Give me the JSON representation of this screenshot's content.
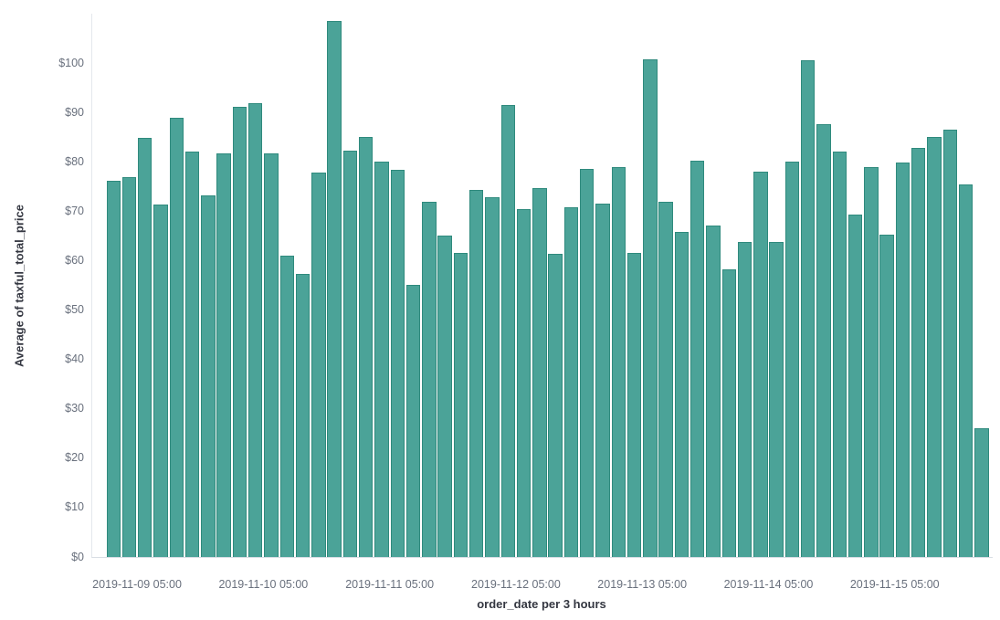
{
  "chart_data": {
    "type": "bar",
    "title": "",
    "xlabel": "order_date per 3 hours",
    "ylabel": "Average of taxful_total_price",
    "legend": "none",
    "grid": false,
    "background_color": "#ffffff",
    "bar_color": "#4ba398",
    "bar_border_color": "#2f8a7d",
    "axis_tick_text_color": "#69707d",
    "axis_title_text_color": "#343741",
    "ylim": [
      0,
      110
    ],
    "y_tick_values": [
      0,
      10,
      20,
      30,
      40,
      50,
      60,
      70,
      80,
      90,
      100
    ],
    "y_tick_labels": [
      "$0",
      "$10",
      "$20",
      "$30",
      "$40",
      "$50",
      "$60",
      "$70",
      "$80",
      "$90",
      "$100"
    ],
    "x_ticks": [
      {
        "label": "2019-11-09 05:00",
        "bar_index": 2
      },
      {
        "label": "2019-11-10 05:00",
        "bar_index": 10
      },
      {
        "label": "2019-11-11 05:00",
        "bar_index": 18
      },
      {
        "label": "2019-11-12 05:00",
        "bar_index": 26
      },
      {
        "label": "2019-11-13 05:00",
        "bar_index": 34
      },
      {
        "label": "2019-11-14 05:00",
        "bar_index": 42
      },
      {
        "label": "2019-11-15 05:00",
        "bar_index": 50
      }
    ],
    "x": [
      "2019-11-08 23:00",
      "2019-11-09 02:00",
      "2019-11-09 05:00",
      "2019-11-09 08:00",
      "2019-11-09 11:00",
      "2019-11-09 14:00",
      "2019-11-09 17:00",
      "2019-11-09 20:00",
      "2019-11-09 23:00",
      "2019-11-10 02:00",
      "2019-11-10 05:00",
      "2019-11-10 08:00",
      "2019-11-10 11:00",
      "2019-11-10 14:00",
      "2019-11-10 17:00",
      "2019-11-10 20:00",
      "2019-11-10 23:00",
      "2019-11-11 02:00",
      "2019-11-11 05:00",
      "2019-11-11 08:00",
      "2019-11-11 11:00",
      "2019-11-11 14:00",
      "2019-11-11 17:00",
      "2019-11-11 20:00",
      "2019-11-11 23:00",
      "2019-11-12 02:00",
      "2019-11-12 05:00",
      "2019-11-12 08:00",
      "2019-11-12 11:00",
      "2019-11-12 14:00",
      "2019-11-12 17:00",
      "2019-11-12 20:00",
      "2019-11-12 23:00",
      "2019-11-13 02:00",
      "2019-11-13 05:00",
      "2019-11-13 08:00",
      "2019-11-13 11:00",
      "2019-11-13 14:00",
      "2019-11-13 17:00",
      "2019-11-13 20:00",
      "2019-11-13 23:00",
      "2019-11-14 02:00",
      "2019-11-14 05:00",
      "2019-11-14 08:00",
      "2019-11-14 11:00",
      "2019-11-14 14:00",
      "2019-11-14 17:00",
      "2019-11-14 20:00",
      "2019-11-14 23:00",
      "2019-11-15 02:00",
      "2019-11-15 05:00",
      "2019-11-15 08:00",
      "2019-11-15 11:00",
      "2019-11-15 14:00",
      "2019-11-15 17:00",
      "2019-11-15 20:00"
    ],
    "values": [
      76.1,
      77.0,
      84.9,
      71.3,
      89.0,
      82.1,
      73.2,
      81.7,
      91.1,
      91.8,
      81.7,
      61.0,
      57.4,
      77.9,
      108.6,
      82.3,
      85.0,
      80.0,
      78.3,
      55.1,
      71.9,
      65.0,
      61.5,
      74.3,
      72.9,
      91.5,
      70.5,
      74.6,
      61.4,
      70.9,
      78.6,
      71.5,
      78.9,
      61.5,
      100.7,
      72.0,
      65.8,
      80.2,
      67.2,
      58.3,
      63.7,
      78.0,
      63.8,
      80.0,
      100.6,
      87.6,
      82.0,
      69.4,
      78.9,
      65.2,
      79.8,
      82.9,
      85.1,
      86.6,
      75.5,
      26.0
    ]
  }
}
